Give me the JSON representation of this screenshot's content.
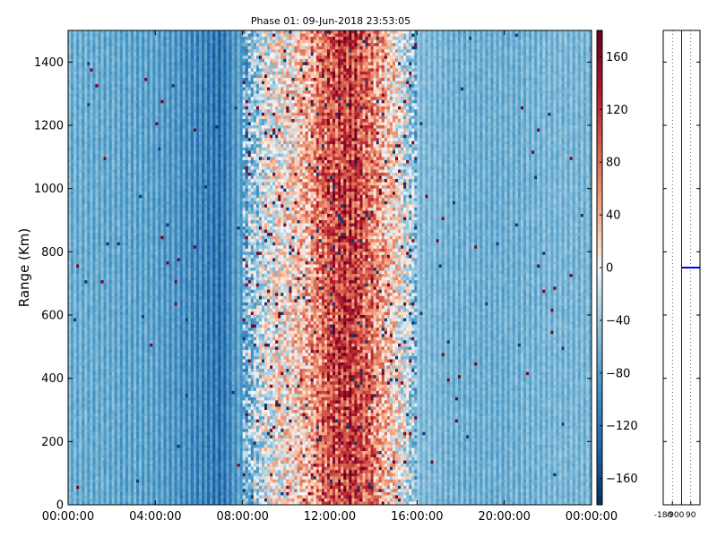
{
  "chart_data": [
    {
      "type": "heatmap",
      "title": "Phase 01: 09-Jun-2018 23:53:05",
      "xlabel": "",
      "ylabel": "Range (Km)",
      "x_tick_labels": [
        "00:00:00",
        "04:00:00",
        "08:00:00",
        "12:00:00",
        "16:00:00",
        "20:00:00",
        "00:00:00"
      ],
      "x_tick_hours": [
        0,
        4,
        8,
        12,
        16,
        20,
        24
      ],
      "xlim_hours": [
        0,
        24
      ],
      "y_ticks": [
        0,
        200,
        400,
        600,
        800,
        1000,
        1200,
        1400
      ],
      "ylim": [
        0,
        1500
      ],
      "colorbar": {
        "colormap": "RdBu_r",
        "range": [
          -180,
          180
        ],
        "ticks": [
          -160,
          -120,
          -80,
          -40,
          0,
          40,
          80,
          120,
          160
        ]
      },
      "column_profile": {
        "description_hours": [
          0,
          2,
          4,
          6,
          7,
          8,
          9,
          10,
          11,
          12,
          13,
          14,
          15,
          16,
          18,
          20,
          22,
          24
        ],
        "mean_phase": [
          -55,
          -60,
          -65,
          -85,
          -100,
          -60,
          -10,
          10,
          40,
          90,
          110,
          60,
          15,
          -45,
          -55,
          -55,
          -50,
          -50
        ]
      }
    },
    {
      "type": "line",
      "title": "",
      "x_tick_labels": [
        "-180",
        "-90",
        "0",
        "90"
      ],
      "x_ticks": [
        -180,
        -90,
        0,
        90
      ],
      "xlim": [
        -180,
        180
      ],
      "ylim": [
        0,
        1500
      ],
      "series": [
        {
          "description": "phase profile",
          "marker_range_km": 750,
          "spike_x": [
            0,
            180
          ]
        }
      ]
    }
  ]
}
